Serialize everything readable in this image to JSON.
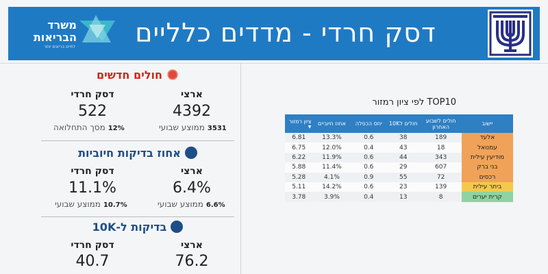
{
  "header": {
    "title": "דסק חרדי - מדדים כלליים",
    "ministry_name": "משרד הבריאות",
    "ministry_tagline": "לחיים בריאים יותר"
  },
  "colors": {
    "header_bg": "#1f7ac4",
    "new_cases_title": "#d0261d",
    "tests_title": "#1e4e87",
    "table_header": "#2f7fc3",
    "status_orange": "#f0a258",
    "status_yellow": "#f3c94c",
    "status_green": "#8ed3a1"
  },
  "new_cases": {
    "title": "חולים חדשים",
    "icon": "virus-icon",
    "national_label": "ארצי",
    "national_value": "4392",
    "national_avg_value": "3531",
    "national_avg_label": "ממוצע שבועי",
    "haredi_label": "דסק חרדי",
    "haredi_value": "522",
    "haredi_share_value": "12%",
    "haredi_share_label": "מסך התחלואה"
  },
  "positive_rate": {
    "title": "אחוז בדיקות חיוביות",
    "icon": "lab-test-icon",
    "national_label": "ארצי",
    "national_value": "6.4%",
    "national_avg_value": "6.6%",
    "national_avg_label": "ממוצע שבועי",
    "haredi_label": "דסק חרדי",
    "haredi_value": "11.1%",
    "haredi_avg_value": "10.7%",
    "haredi_avg_label": "ממוצע שבועי"
  },
  "tests_per_10k": {
    "title": "בדיקות ל-10K",
    "icon": "people-icon",
    "national_label": "ארצי",
    "national_value": "76.2",
    "haredi_label": "דסק חרדי",
    "haredi_value": "40.7"
  },
  "table": {
    "title": "TOP10 לפי ציון רמזור",
    "columns": [
      "יישוב",
      "חולים לשבוע האחרון",
      "חולים ל10K",
      "יחס הכפלה",
      "אחוז חיוביים",
      "ציון רמזור"
    ],
    "rows": [
      {
        "city": "אלעד",
        "weekly_cases": "189",
        "per_10k": "38",
        "doubling": "0.6",
        "positive": "13.3%",
        "score": "6.81",
        "status": "orange"
      },
      {
        "city": "עמנואל",
        "weekly_cases": "18",
        "per_10k": "43",
        "doubling": "0.4",
        "positive": "12.0%",
        "score": "6.75",
        "status": "orange"
      },
      {
        "city": "מודיעין עילית",
        "weekly_cases": "343",
        "per_10k": "44",
        "doubling": "0.6",
        "positive": "11.9%",
        "score": "6.22",
        "status": "orange"
      },
      {
        "city": "בני ברק",
        "weekly_cases": "607",
        "per_10k": "29",
        "doubling": "0.6",
        "positive": "11.4%",
        "score": "5.88",
        "status": "orange"
      },
      {
        "city": "רכסים",
        "weekly_cases": "72",
        "per_10k": "55",
        "doubling": "0.9",
        "positive": "4.1%",
        "score": "5.28",
        "status": "orange"
      },
      {
        "city": "ביתר עילית",
        "weekly_cases": "139",
        "per_10k": "23",
        "doubling": "0.6",
        "positive": "14.2%",
        "score": "5.11",
        "status": "yellow"
      },
      {
        "city": "קרית יערים",
        "weekly_cases": "8",
        "per_10k": "13",
        "doubling": "0.4",
        "positive": "3.9%",
        "score": "3.78",
        "status": "green"
      }
    ]
  }
}
